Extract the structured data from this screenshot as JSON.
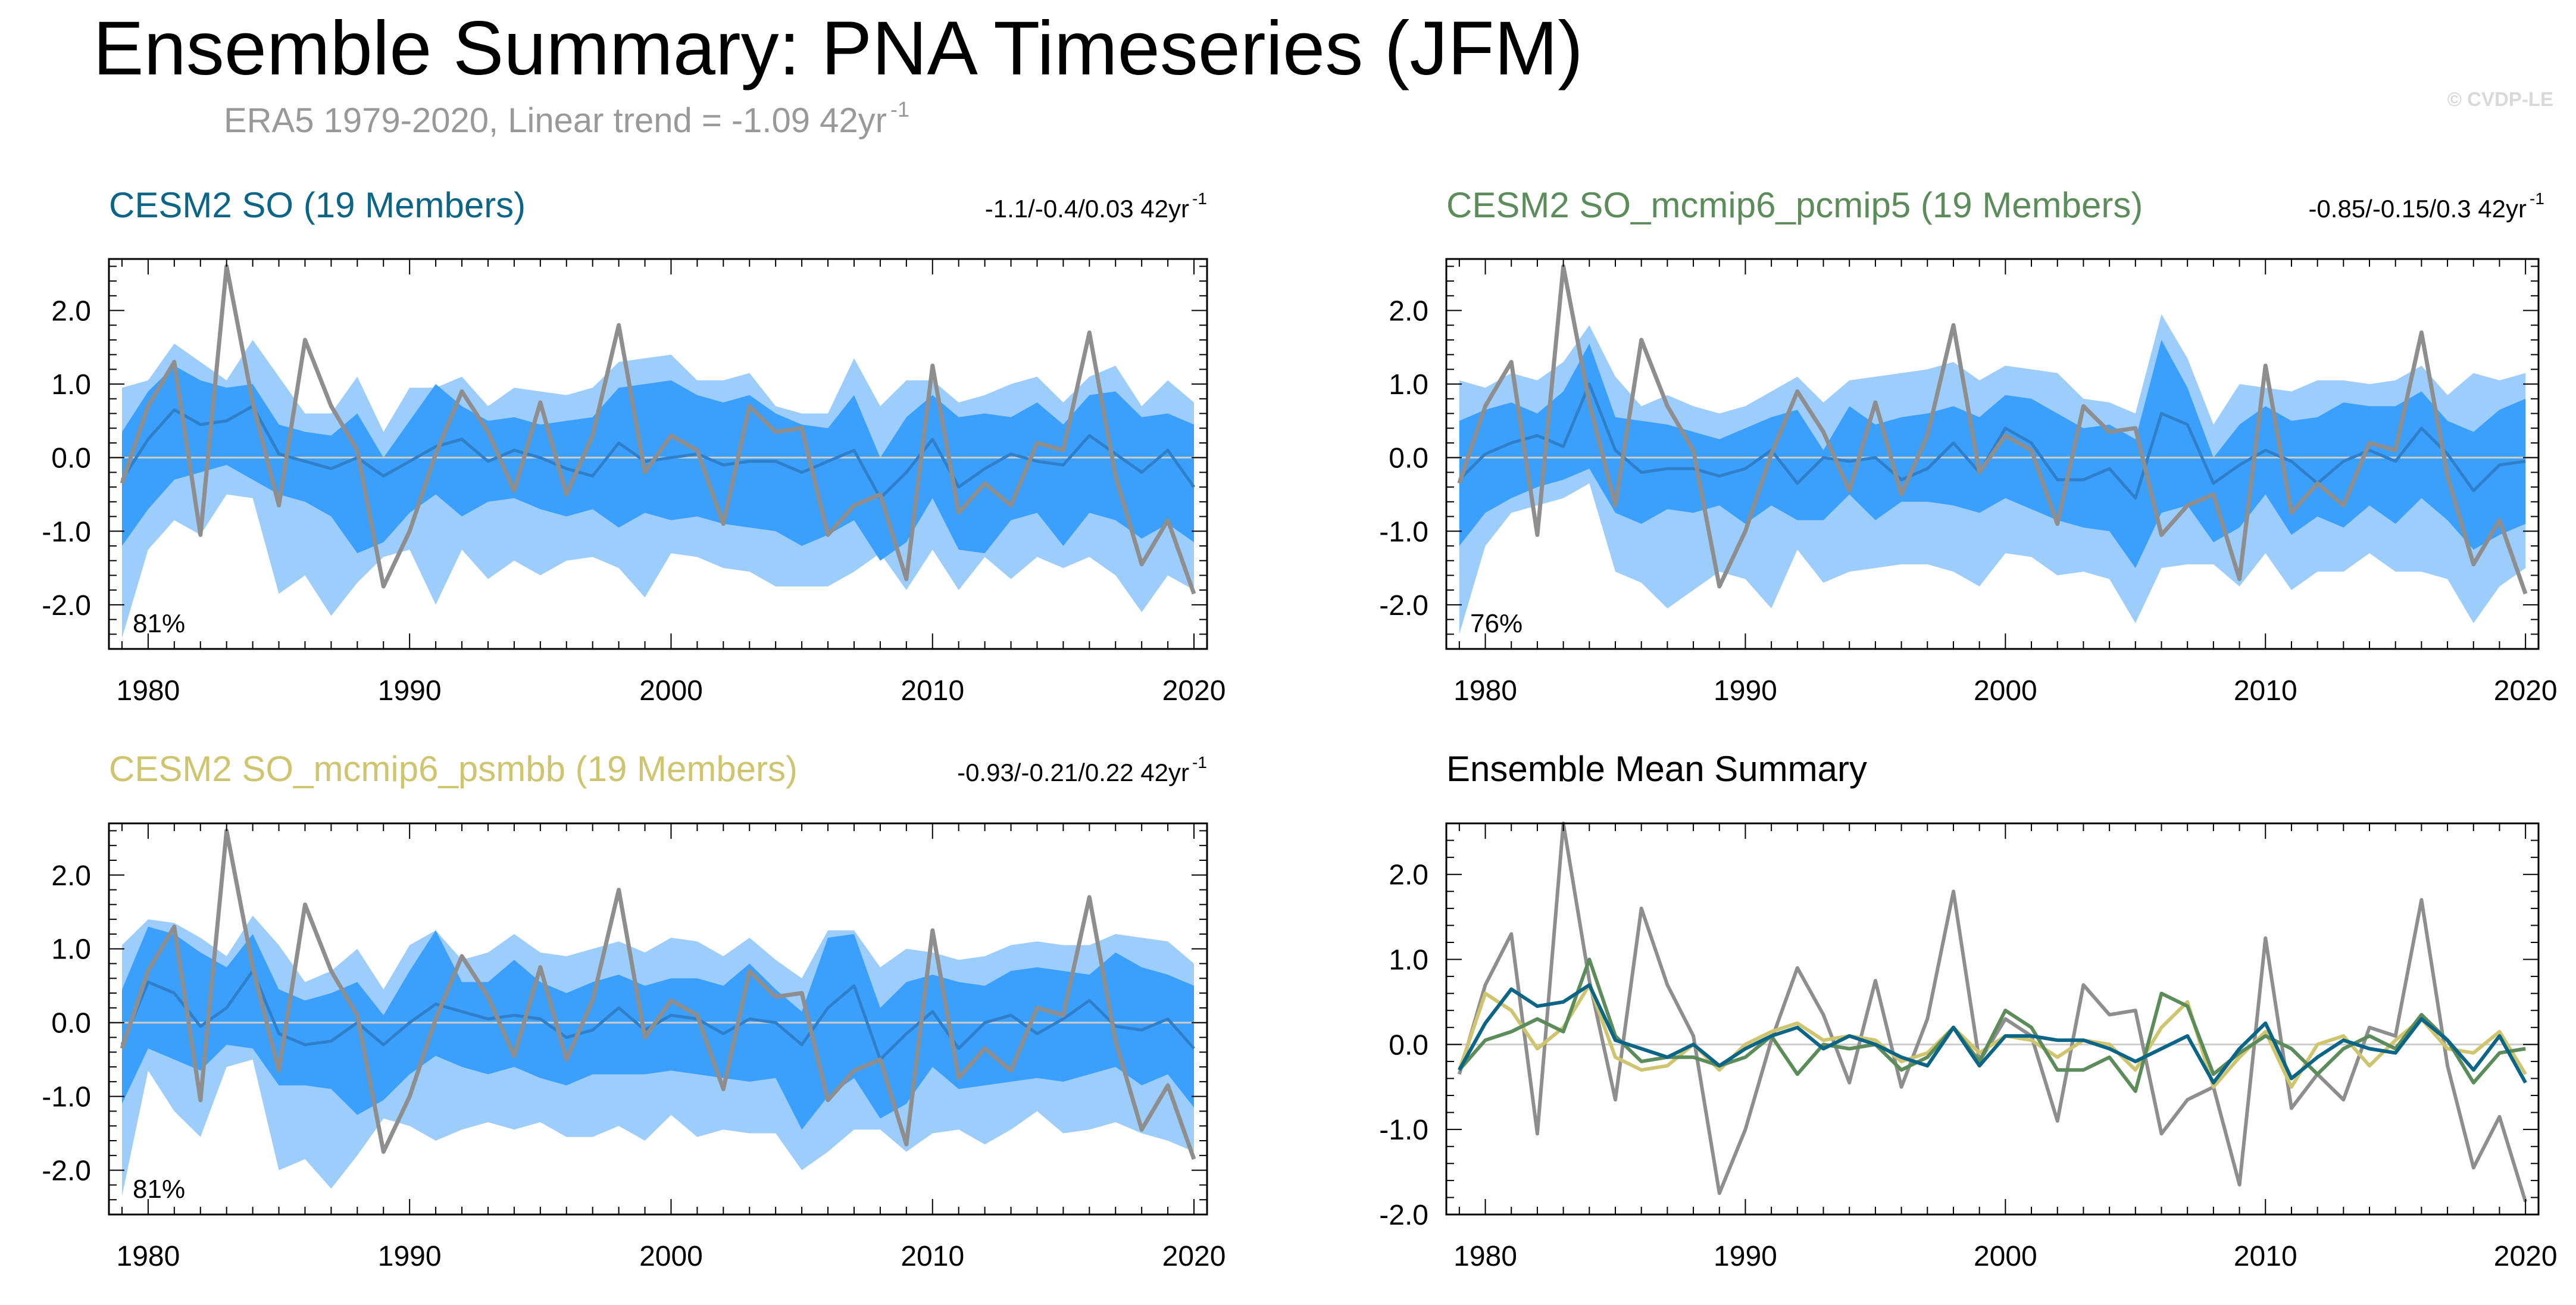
{
  "header": {
    "title": "Ensemble Summary: PNA Timeseries (JFM)",
    "subtitle": "ERA5 1979-2020, Linear trend = -1.09 42yr",
    "subtitle_sup": "-1",
    "watermark": "© CVDP-LE"
  },
  "colors": {
    "outer_band": "#9dcdfb",
    "inner_band": "#3aa0fb",
    "ens_mean": "#2f7fc9",
    "obs": "#8e8e8e",
    "so": "#0b6586",
    "pcmip5": "#5b8c5a",
    "psmbb": "#cfc56f",
    "zero_line": "#cccccc"
  },
  "chart_data": [
    {
      "type": "area",
      "name": "so",
      "title": "CESM2 SO (19 Members)",
      "title_color": "#0b6586",
      "trend_label": "-1.1/-0.4/0.03 42yr",
      "trend_sup": "-1",
      "percent_label": "81%",
      "xlim": [
        1978.5,
        2020.5
      ],
      "ylim": [
        -2.6,
        2.7
      ],
      "yticks": [
        "2.0",
        "1.0",
        "0.0",
        "-1.0",
        "-2.0"
      ],
      "xticks": [
        "1980",
        "1990",
        "2000",
        "2010",
        "2020"
      ],
      "years_start": 1979,
      "outer_upper": [
        0.95,
        1.05,
        1.55,
        1.3,
        1.05,
        1.6,
        1.1,
        0.6,
        0.6,
        1.1,
        0.35,
        0.95,
        0.95,
        1.1,
        0.7,
        0.95,
        0.9,
        0.85,
        0.95,
        1.3,
        1.35,
        1.4,
        1.05,
        1.05,
        1.15,
        0.7,
        0.6,
        0.6,
        1.35,
        0.7,
        1.05,
        1.05,
        0.75,
        0.85,
        1.0,
        1.1,
        0.75,
        1.1,
        1.25,
        0.7,
        1.05,
        0.75
      ],
      "inner_upper": [
        0.35,
        0.9,
        1.25,
        1.05,
        0.95,
        1.0,
        0.45,
        0.35,
        0.3,
        0.6,
        0.0,
        0.5,
        1.0,
        0.7,
        0.5,
        0.55,
        0.45,
        0.5,
        0.55,
        0.95,
        1.0,
        1.05,
        0.85,
        0.75,
        0.85,
        0.6,
        0.45,
        0.4,
        0.85,
        0.0,
        0.55,
        0.85,
        0.55,
        0.6,
        0.55,
        0.75,
        0.45,
        0.85,
        0.9,
        0.55,
        0.6,
        0.45
      ],
      "inner_lower": [
        -1.2,
        -0.7,
        -0.3,
        -0.2,
        -0.1,
        -0.3,
        -0.5,
        -0.6,
        -0.8,
        -1.3,
        -1.15,
        -0.75,
        -0.5,
        -0.8,
        -0.6,
        -0.55,
        -0.7,
        -0.8,
        -0.7,
        -0.95,
        -0.75,
        -0.85,
        -0.8,
        -0.9,
        -0.95,
        -1.0,
        -1.2,
        -1.05,
        -0.85,
        -1.4,
        -1.15,
        -0.55,
        -1.25,
        -1.3,
        -0.85,
        -0.75,
        -1.2,
        -0.75,
        -0.85,
        -1.1,
        -0.9,
        -1.15
      ],
      "outer_lower": [
        -2.45,
        -1.25,
        -0.85,
        -1.05,
        -0.5,
        -0.55,
        -1.85,
        -1.6,
        -2.15,
        -1.7,
        -1.35,
        -1.25,
        -2.0,
        -1.25,
        -1.65,
        -1.4,
        -1.6,
        -1.4,
        -1.35,
        -1.5,
        -1.9,
        -1.3,
        -1.35,
        -1.5,
        -1.55,
        -1.75,
        -1.75,
        -1.75,
        -1.55,
        -1.3,
        -1.8,
        -1.25,
        -1.8,
        -1.35,
        -1.65,
        -1.35,
        -1.5,
        -1.35,
        -1.6,
        -2.1,
        -1.6,
        -1.8
      ],
      "ens_mean": [
        -0.3,
        0.25,
        0.65,
        0.45,
        0.5,
        0.7,
        0.05,
        -0.05,
        -0.15,
        0.0,
        -0.25,
        -0.05,
        0.15,
        0.25,
        -0.05,
        0.1,
        0.0,
        -0.15,
        -0.25,
        0.2,
        -0.05,
        0.0,
        0.05,
        -0.1,
        -0.05,
        -0.05,
        -0.2,
        -0.05,
        0.1,
        -0.55,
        -0.2,
        0.25,
        -0.4,
        -0.15,
        0.05,
        -0.05,
        -0.1,
        0.3,
        0.05,
        -0.2,
        0.1,
        -0.4
      ],
      "obs": [
        -0.35,
        0.7,
        1.3,
        -1.05,
        2.6,
        0.75,
        -0.65,
        1.6,
        0.7,
        0.1,
        -1.75,
        -1.0,
        0.05,
        0.9,
        0.35,
        -0.45,
        0.75,
        -0.5,
        0.3,
        1.8,
        -0.2,
        0.3,
        0.1,
        -0.9,
        0.7,
        0.35,
        0.4,
        -1.05,
        -0.65,
        -0.5,
        -1.65,
        1.25,
        -0.75,
        -0.35,
        -0.65,
        0.2,
        0.1,
        1.7,
        -0.25,
        -1.45,
        -0.85,
        -1.85
      ]
    },
    {
      "type": "area",
      "name": "pcmip5",
      "title": "CESM2 SO_mcmip6_pcmip5 (19 Members)",
      "title_color": "#5b8c5a",
      "trend_label": "-0.85/-0.15/0.3 42yr",
      "trend_sup": "-1",
      "percent_label": "76%",
      "xlim": [
        1978.5,
        2020.5
      ],
      "ylim": [
        -2.6,
        2.7
      ],
      "yticks": [
        "2.0",
        "1.0",
        "0.0",
        "-1.0",
        "-2.0"
      ],
      "xticks": [
        "1980",
        "1990",
        "2000",
        "2010",
        "2020"
      ],
      "years_start": 1979,
      "outer_upper": [
        1.05,
        0.95,
        1.15,
        1.05,
        1.3,
        1.8,
        1.1,
        0.7,
        0.85,
        0.7,
        0.6,
        0.7,
        0.9,
        1.1,
        0.75,
        1.05,
        1.1,
        1.15,
        1.2,
        1.3,
        1.05,
        1.25,
        1.2,
        1.15,
        0.8,
        0.75,
        0.6,
        1.95,
        1.35,
        0.45,
        1.0,
        0.95,
        0.9,
        1.05,
        1.05,
        1.0,
        1.05,
        1.25,
        0.85,
        1.15,
        1.05,
        1.15
      ],
      "inner_upper": [
        0.5,
        0.65,
        0.75,
        0.6,
        0.9,
        1.55,
        0.55,
        0.5,
        0.45,
        0.35,
        0.25,
        0.4,
        0.55,
        0.65,
        0.1,
        0.7,
        0.45,
        0.55,
        0.6,
        0.7,
        0.55,
        0.85,
        0.8,
        0.6,
        0.4,
        0.45,
        0.25,
        1.6,
        0.95,
        0.0,
        0.45,
        0.7,
        0.5,
        0.55,
        0.75,
        0.7,
        0.7,
        0.9,
        0.5,
        0.35,
        0.65,
        0.8
      ],
      "inner_lower": [
        -1.2,
        -0.75,
        -0.55,
        -0.4,
        -0.3,
        -0.15,
        -0.75,
        -0.9,
        -0.7,
        -0.75,
        -0.65,
        -0.9,
        -0.65,
        -0.85,
        -0.85,
        -0.5,
        -0.85,
        -0.6,
        -0.6,
        -0.65,
        -0.75,
        -0.55,
        -0.7,
        -0.85,
        -0.95,
        -1.0,
        -1.5,
        -0.75,
        -0.65,
        -1.15,
        -0.95,
        -0.5,
        -1.05,
        -0.8,
        -0.95,
        -0.65,
        -0.9,
        -0.55,
        -0.85,
        -1.25,
        -1.05,
        -0.9
      ],
      "outer_lower": [
        -2.4,
        -1.2,
        -0.75,
        -0.65,
        -0.55,
        -0.35,
        -1.55,
        -1.7,
        -2.05,
        -1.8,
        -1.55,
        -1.65,
        -2.05,
        -1.25,
        -1.7,
        -1.55,
        -1.5,
        -1.45,
        -1.45,
        -1.55,
        -1.75,
        -1.3,
        -1.35,
        -1.6,
        -1.55,
        -1.65,
        -2.25,
        -1.5,
        -1.45,
        -1.45,
        -1.75,
        -1.3,
        -1.8,
        -1.55,
        -1.55,
        -1.3,
        -1.55,
        -1.55,
        -1.65,
        -2.25,
        -1.75,
        -1.5
      ],
      "ens_mean": [
        -0.3,
        0.05,
        0.2,
        0.3,
        0.15,
        1.0,
        0.1,
        -0.2,
        -0.15,
        -0.15,
        -0.25,
        -0.15,
        0.1,
        -0.35,
        0.0,
        -0.05,
        0.0,
        -0.3,
        -0.15,
        0.2,
        -0.2,
        0.4,
        0.2,
        -0.3,
        -0.3,
        -0.15,
        -0.55,
        0.6,
        0.45,
        -0.35,
        -0.1,
        0.1,
        -0.05,
        -0.35,
        -0.05,
        0.1,
        -0.05,
        0.4,
        0.05,
        -0.45,
        -0.1,
        -0.05
      ],
      "obs": [
        -0.35,
        0.7,
        1.3,
        -1.05,
        2.6,
        0.75,
        -0.65,
        1.6,
        0.7,
        0.1,
        -1.75,
        -1.0,
        0.05,
        0.9,
        0.35,
        -0.45,
        0.75,
        -0.5,
        0.3,
        1.8,
        -0.2,
        0.3,
        0.1,
        -0.9,
        0.7,
        0.35,
        0.4,
        -1.05,
        -0.65,
        -0.5,
        -1.65,
        1.25,
        -0.75,
        -0.35,
        -0.65,
        0.2,
        0.1,
        1.7,
        -0.25,
        -1.45,
        -0.85,
        -1.85
      ]
    },
    {
      "type": "area",
      "name": "psmbb",
      "title": "CESM2 SO_mcmip6_psmbb (19 Members)",
      "title_color": "#cfc56f",
      "trend_label": "-0.93/-0.21/0.22 42yr",
      "trend_sup": "-1",
      "percent_label": "81%",
      "xlim": [
        1978.5,
        2020.5
      ],
      "ylim": [
        -2.6,
        2.7
      ],
      "yticks": [
        "2.0",
        "1.0",
        "0.0",
        "-1.0",
        "-2.0"
      ],
      "xticks": [
        "1980",
        "1990",
        "2000",
        "2010",
        "2020"
      ],
      "years_start": 1979,
      "outer_upper": [
        1.05,
        1.4,
        1.35,
        1.15,
        0.9,
        1.45,
        1.05,
        0.55,
        0.7,
        1.0,
        0.45,
        1.05,
        1.25,
        0.85,
        0.95,
        1.2,
        0.95,
        0.9,
        1.0,
        1.1,
        0.95,
        1.15,
        1.1,
        0.9,
        1.15,
        0.85,
        0.6,
        1.25,
        1.25,
        0.75,
        1.0,
        0.95,
        0.85,
        0.9,
        1.05,
        1.1,
        1.05,
        1.05,
        1.2,
        1.15,
        1.1,
        0.8
      ],
      "inner_upper": [
        0.45,
        1.3,
        1.2,
        0.95,
        0.75,
        1.2,
        0.45,
        0.3,
        0.4,
        0.55,
        0.1,
        0.7,
        1.25,
        0.55,
        0.55,
        0.85,
        0.55,
        0.4,
        0.55,
        0.65,
        0.5,
        0.6,
        0.6,
        0.5,
        0.8,
        0.45,
        0.15,
        1.15,
        1.2,
        0.2,
        0.55,
        0.65,
        0.55,
        0.5,
        0.7,
        0.75,
        0.7,
        0.65,
        0.95,
        0.75,
        0.65,
        0.5
      ],
      "inner_lower": [
        -1.1,
        -0.35,
        -0.5,
        -0.65,
        -0.3,
        -0.35,
        -0.85,
        -0.85,
        -0.9,
        -1.25,
        -1.05,
        -0.7,
        -0.45,
        -0.6,
        -0.7,
        -0.6,
        -0.75,
        -0.85,
        -0.7,
        -0.7,
        -0.7,
        -0.65,
        -0.7,
        -0.75,
        -0.8,
        -0.75,
        -1.45,
        -1.0,
        -0.75,
        -1.3,
        -1.1,
        -0.6,
        -0.9,
        -0.85,
        -0.8,
        -0.75,
        -0.8,
        -0.7,
        -0.6,
        -0.85,
        -0.7,
        -1.15
      ],
      "outer_lower": [
        -2.35,
        -0.65,
        -1.2,
        -1.55,
        -0.6,
        -0.5,
        -2.0,
        -1.85,
        -2.25,
        -1.8,
        -1.3,
        -1.4,
        -1.6,
        -1.45,
        -1.35,
        -1.45,
        -1.35,
        -1.55,
        -1.55,
        -1.4,
        -1.6,
        -1.25,
        -1.55,
        -1.45,
        -1.5,
        -1.5,
        -2.0,
        -1.75,
        -1.45,
        -1.45,
        -1.75,
        -1.5,
        -1.45,
        -1.65,
        -1.45,
        -1.2,
        -1.5,
        -1.45,
        -1.35,
        -1.5,
        -1.6,
        -1.75
      ],
      "ens_mean": [
        -0.3,
        0.55,
        0.4,
        -0.05,
        0.2,
        0.7,
        -0.15,
        -0.3,
        -0.25,
        0.0,
        -0.3,
        0.0,
        0.25,
        0.15,
        0.05,
        0.1,
        0.05,
        -0.2,
        -0.1,
        0.2,
        -0.1,
        0.1,
        0.05,
        -0.15,
        0.05,
        0.0,
        -0.3,
        0.2,
        0.5,
        -0.5,
        -0.15,
        0.15,
        -0.35,
        0.0,
        0.1,
        -0.15,
        0.05,
        0.3,
        -0.05,
        -0.1,
        0.05,
        -0.35
      ],
      "obs": [
        -0.35,
        0.7,
        1.3,
        -1.05,
        2.6,
        0.75,
        -0.65,
        1.6,
        0.7,
        0.1,
        -1.75,
        -1.0,
        0.05,
        0.9,
        0.35,
        -0.45,
        0.75,
        -0.5,
        0.3,
        1.8,
        -0.2,
        0.3,
        0.1,
        -0.9,
        0.7,
        0.35,
        0.4,
        -1.05,
        -0.65,
        -0.5,
        -1.65,
        1.25,
        -0.75,
        -0.35,
        -0.65,
        0.2,
        0.1,
        1.7,
        -0.25,
        -1.45,
        -0.85,
        -1.85
      ]
    },
    {
      "type": "line",
      "name": "summary",
      "title": "Ensemble Mean Summary",
      "title_color": "#000000",
      "xlim": [
        1978.5,
        2020.5
      ],
      "ylim": [
        -2.0,
        2.6
      ],
      "yticks": [
        "2.0",
        "1.0",
        "0.0",
        "-1.0",
        "-2.0"
      ],
      "xticks": [
        "1980",
        "1990",
        "2000",
        "2010",
        "2020"
      ],
      "years_start": 1979,
      "series": [
        {
          "name": "ERA5",
          "color": "#8e8e8e",
          "values": [
            -0.35,
            0.7,
            1.3,
            -1.05,
            2.6,
            0.75,
            -0.65,
            1.6,
            0.7,
            0.1,
            -1.75,
            -1.0,
            0.05,
            0.9,
            0.35,
            -0.45,
            0.75,
            -0.5,
            0.3,
            1.8,
            -0.2,
            0.3,
            0.1,
            -0.9,
            0.7,
            0.35,
            0.4,
            -1.05,
            -0.65,
            -0.5,
            -1.65,
            1.25,
            -0.75,
            -0.35,
            -0.65,
            0.2,
            0.1,
            1.7,
            -0.25,
            -1.45,
            -0.85,
            -1.85
          ]
        },
        {
          "name": "CESM2 SO_mcmip6_psmbb",
          "color": "#cfc56f",
          "values": [
            -0.3,
            0.6,
            0.4,
            -0.05,
            0.2,
            0.7,
            -0.15,
            -0.3,
            -0.25,
            0.0,
            -0.3,
            0.0,
            0.15,
            0.25,
            0.05,
            0.1,
            0.05,
            -0.2,
            -0.1,
            0.2,
            -0.1,
            0.1,
            0.05,
            -0.15,
            0.05,
            0.0,
            -0.3,
            0.2,
            0.5,
            -0.5,
            -0.15,
            0.15,
            -0.5,
            0.0,
            0.1,
            -0.25,
            0.05,
            0.3,
            -0.05,
            -0.1,
            0.15,
            -0.35
          ]
        },
        {
          "name": "CESM2 SO_mcmip6_pcmip5",
          "color": "#5b8c5a",
          "values": [
            -0.3,
            0.05,
            0.15,
            0.3,
            0.15,
            1.0,
            0.1,
            -0.2,
            -0.15,
            -0.15,
            -0.25,
            -0.15,
            0.1,
            -0.35,
            0.0,
            -0.05,
            0.0,
            -0.3,
            -0.15,
            0.2,
            -0.2,
            0.4,
            0.2,
            -0.3,
            -0.3,
            -0.15,
            -0.55,
            0.6,
            0.45,
            -0.35,
            -0.1,
            0.1,
            -0.05,
            -0.35,
            -0.05,
            0.1,
            -0.05,
            0.35,
            0.05,
            -0.45,
            -0.1,
            -0.05
          ]
        },
        {
          "name": "CESM2 SO",
          "color": "#0b6586",
          "values": [
            -0.3,
            0.25,
            0.65,
            0.45,
            0.5,
            0.7,
            0.05,
            -0.05,
            -0.15,
            0.0,
            -0.25,
            -0.05,
            0.1,
            0.2,
            -0.05,
            0.1,
            0.0,
            -0.15,
            -0.25,
            0.2,
            -0.25,
            0.1,
            0.1,
            0.05,
            0.05,
            -0.05,
            -0.2,
            -0.05,
            0.1,
            -0.45,
            -0.05,
            0.25,
            -0.4,
            -0.15,
            0.05,
            -0.05,
            -0.1,
            0.3,
            0.05,
            -0.3,
            0.1,
            -0.45
          ]
        }
      ]
    }
  ]
}
